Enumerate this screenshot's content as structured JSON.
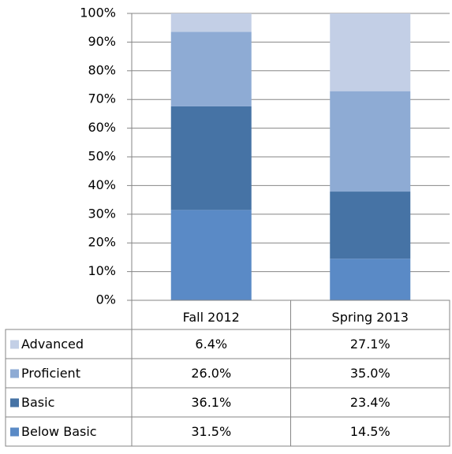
{
  "chart_data": {
    "type": "stacked_bar",
    "categories": [
      "Fall 2012",
      "Spring 2013"
    ],
    "series": [
      {
        "name": "Advanced",
        "color": "#c3cfe6",
        "values": [
          6.4,
          27.1
        ],
        "value_labels": [
          "6.4%",
          "27.1%"
        ]
      },
      {
        "name": "Proficient",
        "color": "#8eabd4",
        "values": [
          26.0,
          35.0
        ],
        "value_labels": [
          "26.0%",
          "35.0%"
        ]
      },
      {
        "name": "Basic",
        "color": "#4673a5",
        "values": [
          36.1,
          23.4
        ],
        "value_labels": [
          "36.1%",
          "23.4%"
        ]
      },
      {
        "name": "Below Basic",
        "color": "#5a8ac6",
        "values": [
          31.5,
          14.5
        ],
        "value_labels": [
          "31.5%",
          "14.5%"
        ]
      }
    ],
    "ylim": [
      0,
      100
    ],
    "yticks": [
      {
        "value": 0,
        "label": "0%"
      },
      {
        "value": 10,
        "label": "10%"
      },
      {
        "value": 20,
        "label": "20%"
      },
      {
        "value": 30,
        "label": "30%"
      },
      {
        "value": 40,
        "label": "40%"
      },
      {
        "value": 50,
        "label": "50%"
      },
      {
        "value": 60,
        "label": "60%"
      },
      {
        "value": 70,
        "label": "70%"
      },
      {
        "value": 80,
        "label": "80%"
      },
      {
        "value": 90,
        "label": "90%"
      },
      {
        "value": 100,
        "label": "100%"
      }
    ],
    "grid": true,
    "legend": "table"
  }
}
